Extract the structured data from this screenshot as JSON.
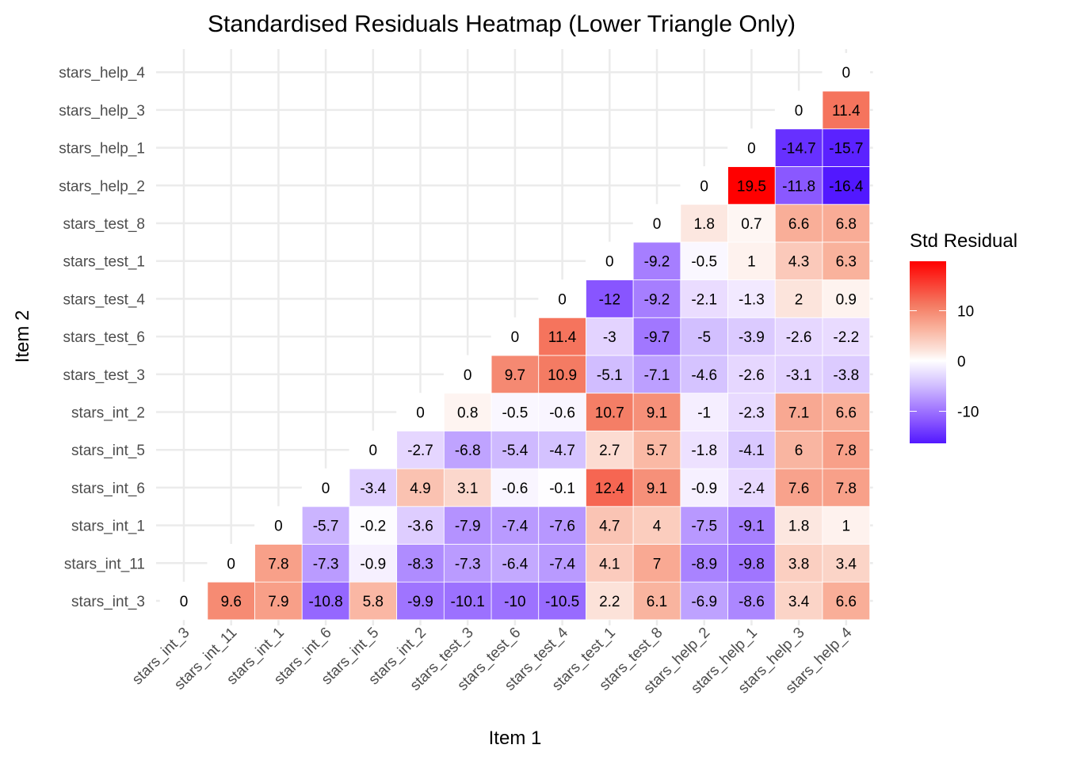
{
  "chart_data": {
    "type": "heatmap",
    "title": "Standardised Residuals Heatmap (Lower Triangle Only)",
    "xlabel": "Item 1",
    "ylabel": "Item 2",
    "x_categories": [
      "stars_int_3",
      "stars_int_11",
      "stars_int_1",
      "stars_int_6",
      "stars_int_5",
      "stars_int_2",
      "stars_test_3",
      "stars_test_6",
      "stars_test_4",
      "stars_test_1",
      "stars_test_8",
      "stars_help_2",
      "stars_help_1",
      "stars_help_3",
      "stars_help_4"
    ],
    "y_categories_bottom_to_top": [
      "stars_int_3",
      "stars_int_11",
      "stars_int_1",
      "stars_int_6",
      "stars_int_5",
      "stars_int_2",
      "stars_test_3",
      "stars_test_6",
      "stars_test_4",
      "stars_test_1",
      "stars_test_8",
      "stars_help_2",
      "stars_help_1",
      "stars_help_3",
      "stars_help_4"
    ],
    "rows": [
      [
        0,
        9.6,
        7.9,
        -10.8,
        5.8,
        -9.9,
        -10.1,
        -10,
        -10.5,
        2.2,
        6.1,
        -6.9,
        -8.6,
        3.4,
        6.6
      ],
      [
        0,
        7.8,
        -7.3,
        -0.9,
        -8.3,
        -7.3,
        -6.4,
        -7.4,
        4.1,
        7,
        -8.9,
        -9.8,
        3.8,
        3.4
      ],
      [
        0,
        -5.7,
        -0.2,
        -3.6,
        -7.9,
        -7.4,
        -7.6,
        4.7,
        4,
        -7.5,
        -9.1,
        1.8,
        1
      ],
      [
        0,
        -3.4,
        4.9,
        3.1,
        -0.6,
        -0.1,
        12.4,
        9.1,
        -0.9,
        -2.4,
        7.6,
        7.8
      ],
      [
        0,
        -2.7,
        -6.8,
        -5.4,
        -4.7,
        2.7,
        5.7,
        -1.8,
        -4.1,
        6,
        7.8
      ],
      [
        0,
        0.8,
        -0.5,
        -0.6,
        10.7,
        9.1,
        -1,
        -2.3,
        7.1,
        6.6
      ],
      [
        0,
        9.7,
        10.9,
        -5.1,
        -7.1,
        -4.6,
        -2.6,
        -3.1,
        -3.8
      ],
      [
        0,
        11.4,
        -3,
        -9.7,
        -5,
        -3.9,
        -2.6,
        -2.2
      ],
      [
        0,
        -12,
        -9.2,
        -2.1,
        -1.3,
        2,
        0.9
      ],
      [
        0,
        -9.2,
        -0.5,
        1,
        4.3,
        6.3
      ],
      [
        0,
        1.8,
        0.7,
        6.6,
        6.8
      ],
      [
        0,
        19.5,
        -11.8,
        -16.4
      ],
      [
        0,
        -14.7,
        -15.7
      ],
      [
        0,
        11.4
      ],
      [
        0
      ]
    ],
    "rows_note": "row i (y category i) holds values for x categories i..14",
    "legend": {
      "title": "Std Residual",
      "ticks": [
        10,
        0,
        -10
      ],
      "range": [
        -16.4,
        19.5
      ],
      "placement": "right"
    },
    "colors": {
      "low": "#5218FF",
      "mid": "#FFFFFF",
      "high": "#FF0000"
    },
    "grid": true
  }
}
